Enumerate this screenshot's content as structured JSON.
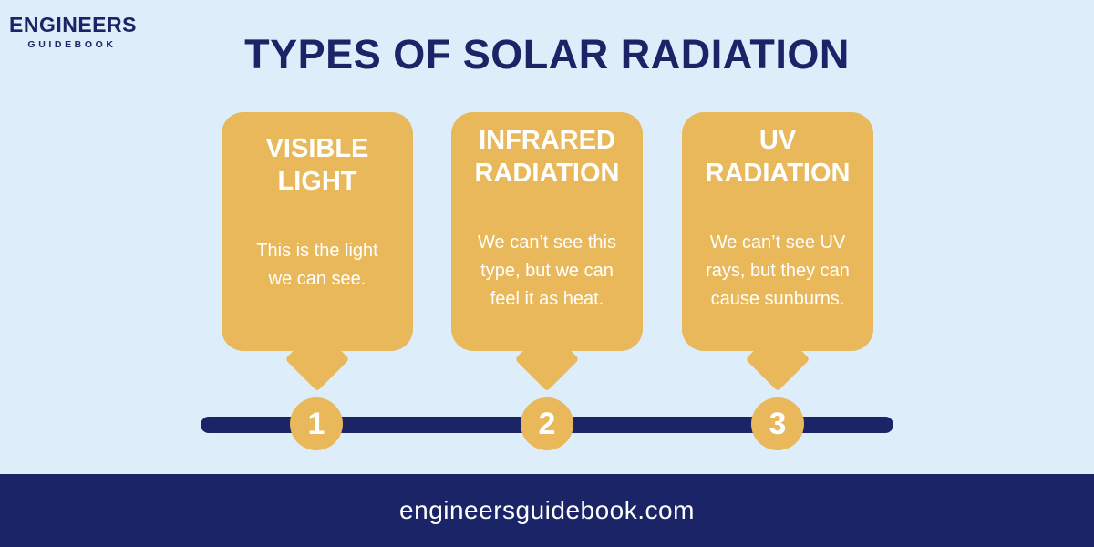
{
  "logo": {
    "main": "ENGINEERS",
    "sub": "GUIDEBOOK"
  },
  "title": "TYPES OF SOLAR RADIATION",
  "cards": [
    {
      "number": "1",
      "title_line1": "VISIBLE",
      "title_line2": "LIGHT",
      "desc_lines": [
        "This is the light",
        "we can see."
      ]
    },
    {
      "number": "2",
      "title_line1": "INFRARED",
      "title_line2": "RADIATION",
      "desc_lines": [
        "We can’t see this",
        "type, but we can",
        "feel it as heat."
      ]
    },
    {
      "number": "3",
      "title_line1": "UV",
      "title_line2": "RADIATION",
      "desc_lines": [
        "We can’t see UV",
        "rays, but they can",
        "cause sunburns."
      ]
    }
  ],
  "footer": {
    "url": "engineersguidebook.com"
  },
  "colors": {
    "background": "#ddeefa",
    "navy": "#1a2466",
    "gold": "#e8b85a",
    "white": "#ffffff"
  }
}
